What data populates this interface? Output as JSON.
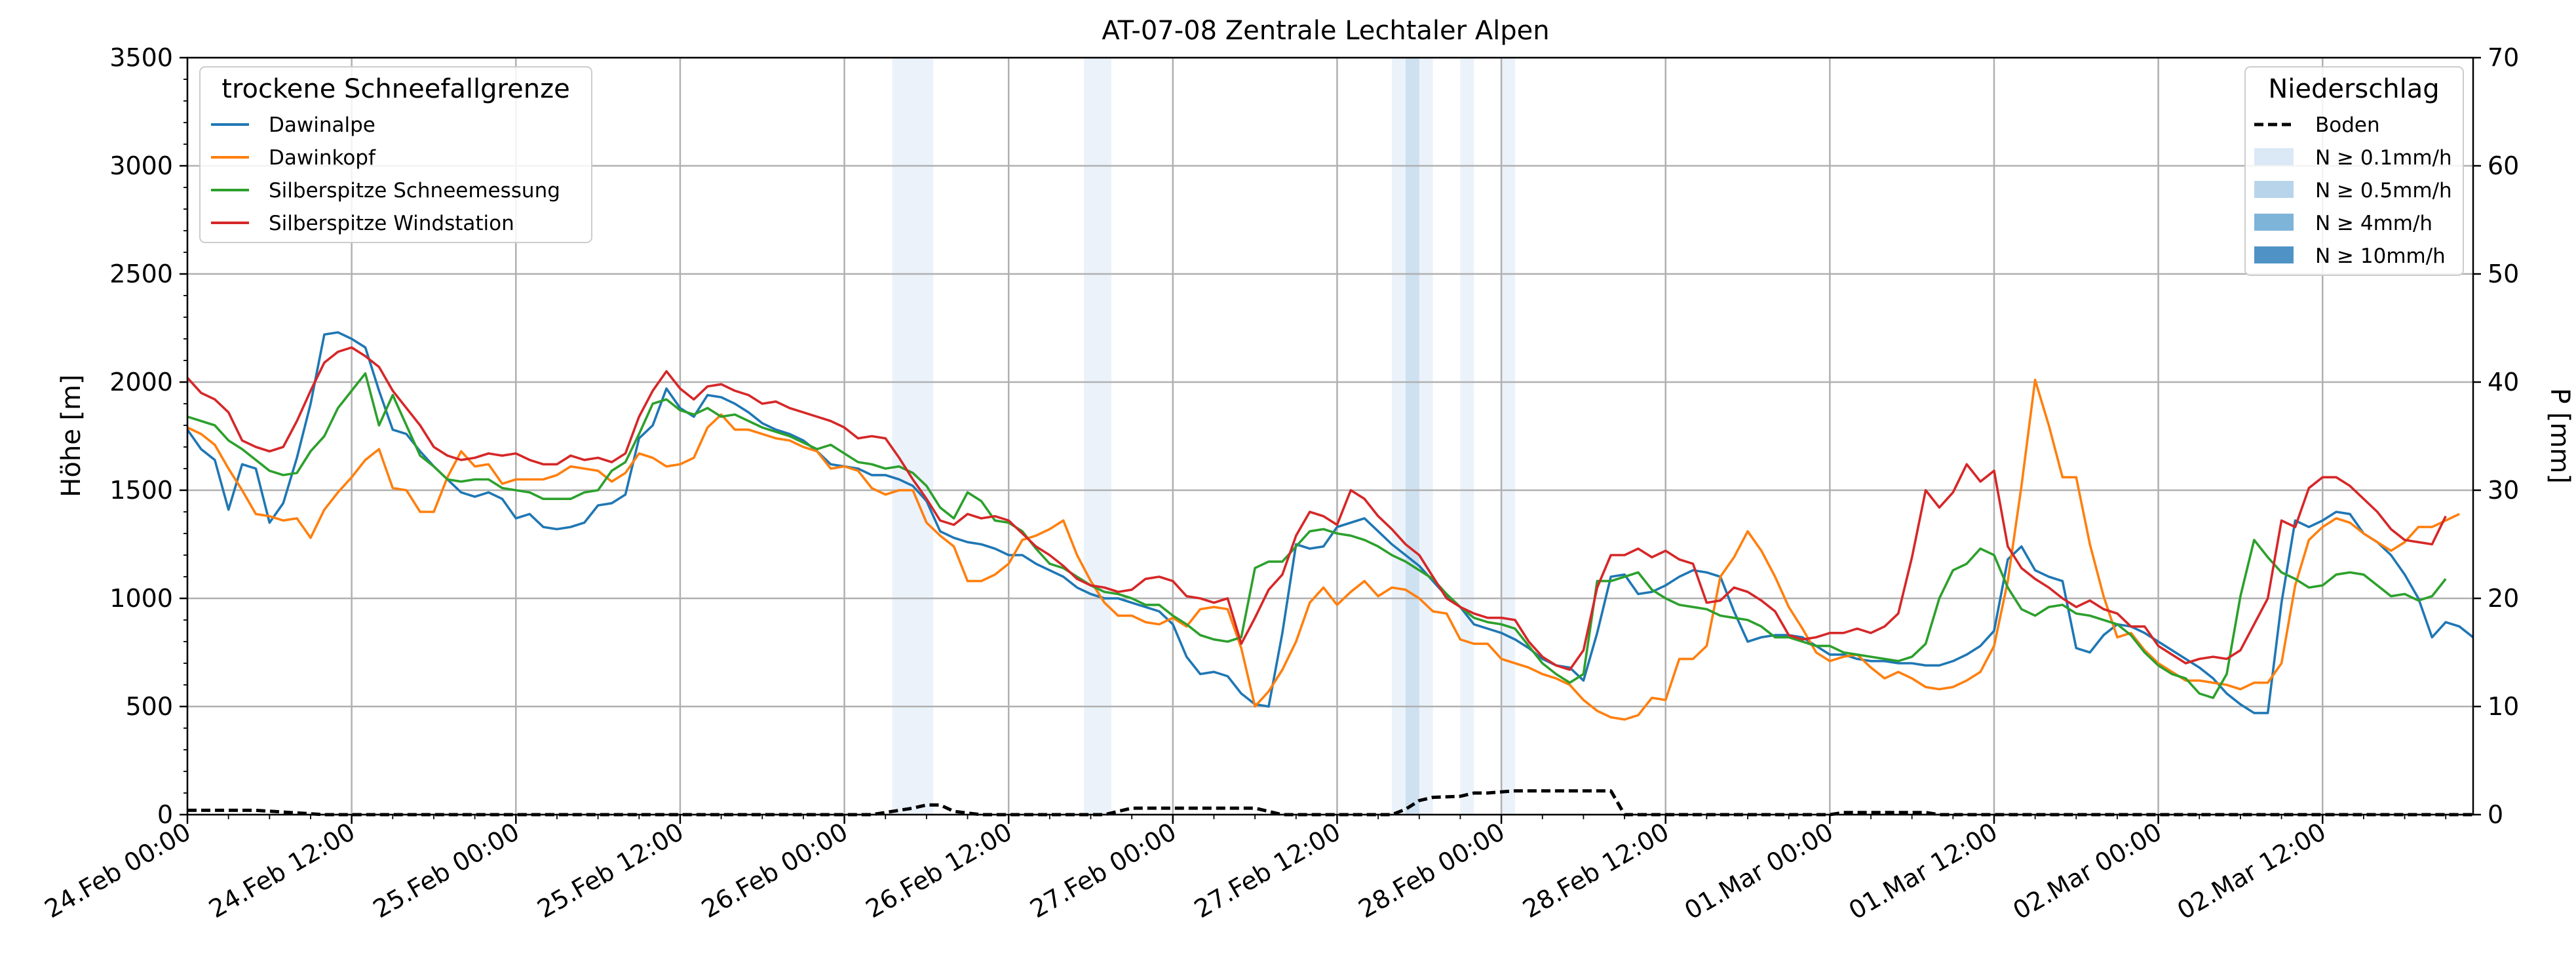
{
  "chart_data": {
    "type": "line",
    "title": "AT-07-08 Zentrale Lechtaler Alpen",
    "ylabel_left": "Höhe [m]",
    "ylabel_right": "P [mm]",
    "x_start": "24.Feb 00:00",
    "x_end": "02.Mar 21:00",
    "x_ticks": [
      "24.Feb 00:00",
      "24.Feb 12:00",
      "25.Feb 00:00",
      "25.Feb 12:00",
      "26.Feb 00:00",
      "26.Feb 12:00",
      "27.Feb 00:00",
      "27.Feb 12:00",
      "28.Feb 00:00",
      "28.Feb 12:00",
      "01.Mar 00:00",
      "01.Mar 12:00",
      "02.Mar 00:00",
      "02.Mar 12:00"
    ],
    "y_left_ticks": [
      "0",
      "500",
      "1000",
      "1500",
      "2000",
      "2500",
      "3000",
      "3500"
    ],
    "y_left_range": [
      0,
      3500
    ],
    "y_right_ticks": [
      "0",
      "10",
      "20",
      "30",
      "40",
      "50",
      "60",
      "70"
    ],
    "y_right_range": [
      0,
      70
    ],
    "grid": true,
    "colors": {
      "Dawinalpe": "#1f77b4",
      "Dawinkopf": "#ff7f0e",
      "Silberspitze Schneemessung": "#2ca02c",
      "Silberspitze Windstation": "#d62728",
      "Boden": "#000000",
      "band_01": "#dbe8f6",
      "band_05": "#b7d4ea",
      "band_4": "#7fb4d9",
      "band_10": "#4f93c6"
    },
    "legend_left": {
      "title": "trockene Schneefallgrenze",
      "placement": "upper-left",
      "entries": [
        "Dawinalpe",
        "Dawinkopf",
        "Silberspitze Schneemessung",
        "Silberspitze Windstation"
      ]
    },
    "legend_right": {
      "title": "Niederschlag",
      "placement": "upper-right",
      "entries": [
        "Boden",
        "N ≥ 0.1mm/h",
        "N ≥ 0.5mm/h",
        "N ≥ 4mm/h",
        "N ≥ 10mm/h"
      ]
    },
    "precip_bands": [
      {
        "from": 51.5,
        "to": 54.5,
        "level": "0.1"
      },
      {
        "from": 65.5,
        "to": 67.5,
        "level": "0.1"
      },
      {
        "from": 88.0,
        "to": 91.0,
        "level": "0.1"
      },
      {
        "from": 89.0,
        "to": 90.0,
        "level": "0.5"
      },
      {
        "from": 93.0,
        "to": 94.0,
        "level": "0.1"
      },
      {
        "from": 96.0,
        "to": 97.0,
        "level": "0.1"
      }
    ],
    "series": [
      {
        "name": "Dawinalpe",
        "axis": "left",
        "x_step_hours": 1,
        "values": [
          1780,
          1690,
          1640,
          1410,
          1620,
          1600,
          1350,
          1440,
          1650,
          1900,
          2220,
          2230,
          2200,
          2160,
          1960,
          1780,
          1760,
          1680,
          1610,
          1550,
          1490,
          1470,
          1490,
          1460,
          1370,
          1390,
          1330,
          1320,
          1330,
          1350,
          1430,
          1440,
          1480,
          1740,
          1800,
          1970,
          1880,
          1840,
          1940,
          1930,
          1900,
          1860,
          1810,
          1780,
          1760,
          1730,
          1680,
          1620,
          1610,
          1600,
          1570,
          1570,
          1550,
          1520,
          1450,
          1310,
          1280,
          1260,
          1250,
          1230,
          1200,
          1200,
          1160,
          1130,
          1100,
          1050,
          1020,
          1000,
          1000,
          980,
          960,
          940,
          880,
          730,
          650,
          660,
          640,
          560,
          510,
          500,
          840,
          1250,
          1230,
          1240,
          1330,
          1350,
          1370,
          1310,
          1250,
          1200,
          1150,
          1080,
          1010,
          960,
          880,
          860,
          840,
          810,
          770,
          720,
          690,
          680,
          620,
          840,
          1100,
          1110,
          1020,
          1030,
          1060,
          1100,
          1130,
          1120,
          1100,
          940,
          800,
          820,
          830,
          830,
          820,
          780,
          740,
          740,
          720,
          710,
          710,
          700,
          700,
          690,
          690,
          710,
          740,
          780,
          850,
          1180,
          1240,
          1130,
          1100,
          1080,
          770,
          750,
          830,
          880,
          870,
          840,
          800,
          760,
          720,
          680,
          630,
          560,
          510,
          470,
          470,
          980,
          1360,
          1330,
          1360,
          1400,
          1390,
          1300,
          1260,
          1200,
          1110,
          1000,
          820,
          890,
          870,
          820
        ]
      },
      {
        "name": "Dawinkopf",
        "axis": "left",
        "x_step_hours": 1,
        "values": [
          1790,
          1760,
          1710,
          1600,
          1500,
          1390,
          1380,
          1360,
          1370,
          1280,
          1410,
          1490,
          1560,
          1640,
          1690,
          1510,
          1500,
          1400,
          1400,
          1560,
          1680,
          1610,
          1620,
          1530,
          1550,
          1550,
          1550,
          1570,
          1610,
          1600,
          1590,
          1540,
          1580,
          1670,
          1650,
          1610,
          1620,
          1650,
          1790,
          1850,
          1780,
          1780,
          1760,
          1740,
          1730,
          1700,
          1680,
          1600,
          1610,
          1590,
          1510,
          1480,
          1500,
          1500,
          1350,
          1290,
          1240,
          1080,
          1080,
          1110,
          1160,
          1270,
          1290,
          1320,
          1360,
          1200,
          1080,
          980,
          920,
          920,
          890,
          880,
          910,
          870,
          950,
          960,
          950,
          770,
          500,
          570,
          670,
          800,
          980,
          1050,
          970,
          1030,
          1080,
          1010,
          1050,
          1040,
          1000,
          940,
          930,
          810,
          790,
          790,
          720,
          700,
          680,
          650,
          630,
          600,
          530,
          480,
          450,
          440,
          460,
          540,
          530,
          720,
          720,
          780,
          1100,
          1190,
          1310,
          1220,
          1100,
          960,
          860,
          750,
          710,
          730,
          740,
          680,
          630,
          660,
          630,
          590,
          580,
          590,
          620,
          660,
          780,
          1080,
          1520,
          2010,
          1800,
          1560,
          1560,
          1250,
          1010,
          820,
          840,
          760,
          700,
          660,
          620,
          620,
          610,
          600,
          580,
          610,
          610,
          700,
          1060,
          1270,
          1330,
          1370,
          1350,
          1300,
          1260,
          1220,
          1260,
          1330,
          1330,
          1360,
          1390
        ]
      },
      {
        "name": "Silberspitze Schneemessung",
        "axis": "left",
        "x_step_hours": 1,
        "values": [
          1840,
          1820,
          1800,
          1730,
          1690,
          1640,
          1590,
          1570,
          1580,
          1680,
          1750,
          1880,
          1960,
          2040,
          1800,
          1940,
          1800,
          1660,
          1610,
          1550,
          1540,
          1550,
          1550,
          1510,
          1500,
          1490,
          1460,
          1460,
          1460,
          1490,
          1500,
          1590,
          1630,
          1760,
          1900,
          1920,
          1870,
          1850,
          1880,
          1840,
          1850,
          1820,
          1790,
          1770,
          1750,
          1720,
          1690,
          1710,
          1670,
          1630,
          1620,
          1600,
          1610,
          1580,
          1520,
          1420,
          1370,
          1490,
          1450,
          1360,
          1350,
          1310,
          1230,
          1160,
          1140,
          1100,
          1060,
          1030,
          1020,
          1000,
          970,
          970,
          920,
          880,
          830,
          810,
          800,
          820,
          1140,
          1170,
          1170,
          1240,
          1310,
          1320,
          1300,
          1290,
          1270,
          1240,
          1200,
          1170,
          1130,
          1090,
          1020,
          960,
          910,
          890,
          880,
          860,
          780,
          700,
          650,
          610,
          650,
          1080,
          1080,
          1100,
          1120,
          1040,
          1000,
          970,
          960,
          950,
          920,
          910,
          900,
          870,
          820,
          820,
          800,
          780,
          780,
          750,
          740,
          730,
          720,
          710,
          730,
          790,
          1000,
          1130,
          1160,
          1230,
          1200,
          1050,
          950,
          920,
          960,
          970,
          930,
          920,
          900,
          880,
          830,
          750,
          690,
          650,
          630,
          560,
          540,
          650,
          1010,
          1270,
          1190,
          1120,
          1090,
          1050,
          1060,
          1110,
          1120,
          1110,
          1060,
          1010,
          1020,
          990,
          1010,
          1090
        ]
      },
      {
        "name": "Silberspitze Windstation",
        "axis": "left",
        "x_step_hours": 1,
        "values": [
          2020,
          1950,
          1920,
          1860,
          1730,
          1700,
          1680,
          1700,
          1820,
          1960,
          2090,
          2140,
          2160,
          2120,
          2070,
          1960,
          1880,
          1800,
          1700,
          1660,
          1640,
          1650,
          1670,
          1660,
          1670,
          1640,
          1620,
          1620,
          1660,
          1640,
          1650,
          1630,
          1670,
          1840,
          1960,
          2050,
          1970,
          1920,
          1980,
          1990,
          1960,
          1940,
          1900,
          1910,
          1880,
          1860,
          1840,
          1820,
          1790,
          1740,
          1750,
          1740,
          1650,
          1550,
          1460,
          1360,
          1340,
          1390,
          1370,
          1380,
          1360,
          1300,
          1240,
          1200,
          1150,
          1090,
          1060,
          1050,
          1030,
          1040,
          1090,
          1100,
          1080,
          1010,
          1000,
          980,
          1000,
          790,
          910,
          1040,
          1110,
          1290,
          1400,
          1380,
          1340,
          1500,
          1460,
          1380,
          1320,
          1250,
          1200,
          1100,
          1000,
          960,
          930,
          910,
          910,
          900,
          800,
          730,
          690,
          670,
          760,
          1050,
          1200,
          1200,
          1230,
          1190,
          1220,
          1180,
          1160,
          980,
          990,
          1050,
          1030,
          990,
          940,
          830,
          810,
          820,
          840,
          840,
          860,
          840,
          870,
          930,
          1190,
          1500,
          1420,
          1490,
          1620,
          1540,
          1590,
          1240,
          1140,
          1090,
          1050,
          1000,
          960,
          990,
          950,
          930,
          870,
          870,
          780,
          740,
          700,
          720,
          730,
          720,
          760,
          880,
          1000,
          1360,
          1330,
          1510,
          1560,
          1560,
          1520,
          1460,
          1400,
          1320,
          1270,
          1260,
          1250,
          1380
        ]
      },
      {
        "name": "Boden",
        "axis": "right",
        "dashed": true,
        "points": [
          [
            0,
            0.4
          ],
          [
            5,
            0.4
          ],
          [
            10,
            0.0
          ],
          [
            50,
            0.0
          ],
          [
            53,
            0.6
          ],
          [
            54,
            0.9
          ],
          [
            55,
            0.9
          ],
          [
            56,
            0.3
          ],
          [
            58,
            0.0
          ],
          [
            67,
            0.0
          ],
          [
            68,
            0.3
          ],
          [
            69,
            0.6
          ],
          [
            78,
            0.6
          ],
          [
            79,
            0.3
          ],
          [
            80,
            0.0
          ],
          [
            88,
            0.0
          ],
          [
            89,
            0.5
          ],
          [
            90,
            1.3
          ],
          [
            91,
            1.6
          ],
          [
            93,
            1.7
          ],
          [
            94,
            2.0
          ],
          [
            95,
            2.0
          ],
          [
            96,
            2.1
          ],
          [
            97,
            2.2
          ],
          [
            104,
            2.2
          ],
          [
            105,
            0.0
          ],
          [
            120,
            0.0
          ],
          [
            121,
            0.2
          ],
          [
            127,
            0.2
          ],
          [
            128,
            0.0
          ],
          [
            167,
            0.0
          ]
        ]
      }
    ]
  }
}
